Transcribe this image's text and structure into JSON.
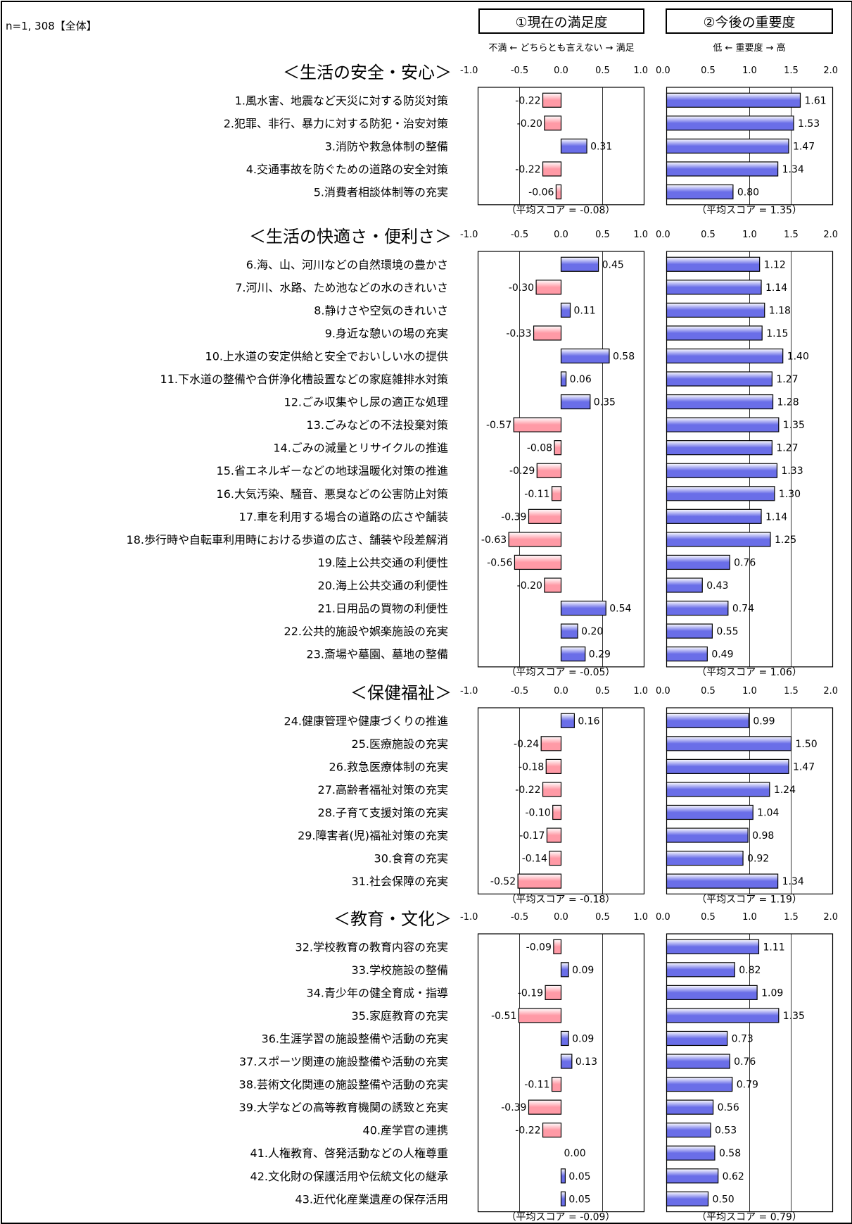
{
  "header": {
    "sample_label": "n=1, 308【全体】",
    "left_title": "①現在の満足度",
    "right_title": "②今後の重要度",
    "left_scale": "不満 ← どちらとも言えない → 満足",
    "right_scale": "低 ← 重要度 → 高"
  },
  "chart_data": {
    "type": "bar",
    "orientation": "horizontal",
    "panels": [
      {
        "name": "①現在の満足度",
        "xlim": [
          -1.0,
          1.0
        ],
        "ticks": [
          "-1.0",
          "-0.5",
          "0.0",
          "0.5",
          "1.0"
        ]
      },
      {
        "name": "②今後の重要度",
        "xlim": [
          0.0,
          2.0
        ],
        "ticks": [
          "0.0",
          "0.5",
          "1.0",
          "1.5",
          "2.0"
        ]
      }
    ],
    "colors": {
      "negative": "#ff9aa6",
      "positive_satisfaction": "#6a6ee8",
      "importance": "#6a6ee8"
    },
    "groups": [
      {
        "title": "＜生活の安全・安心＞",
        "avg_satisfaction": "（平均スコア = -0.08）",
        "avg_importance": "（平均スコア = 1.35）",
        "items": [
          {
            "label": "1.風水害、地震など天災に対する防災対策",
            "satisfaction": -0.22,
            "importance": 1.61
          },
          {
            "label": "2.犯罪、非行、暴力に対する防犯・治安対策",
            "satisfaction": -0.2,
            "importance": 1.53
          },
          {
            "label": "3.消防や救急体制の整備",
            "satisfaction": 0.31,
            "importance": 1.47
          },
          {
            "label": "4.交通事故を防ぐための道路の安全対策",
            "satisfaction": -0.22,
            "importance": 1.34
          },
          {
            "label": "5.消費者相談体制等の充実",
            "satisfaction": -0.06,
            "importance": 0.8
          }
        ]
      },
      {
        "title": "＜生活の快適さ・便利さ＞",
        "avg_satisfaction": "（平均スコア = -0.05）",
        "avg_importance": "（平均スコア = 1.06）",
        "items": [
          {
            "label": "6.海、山、河川などの自然環境の豊かさ",
            "satisfaction": 0.45,
            "importance": 1.12
          },
          {
            "label": "7.河川、水路、ため池などの水のきれいさ",
            "satisfaction": -0.3,
            "importance": 1.14
          },
          {
            "label": "8.静けさや空気のきれいさ",
            "satisfaction": 0.11,
            "importance": 1.18
          },
          {
            "label": "9.身近な憩いの場の充実",
            "satisfaction": -0.33,
            "importance": 1.15
          },
          {
            "label": "10.上水道の安定供給と安全でおいしい水の提供",
            "satisfaction": 0.58,
            "importance": 1.4
          },
          {
            "label": "11.下水道の整備や合併浄化槽設置などの家庭雑排水対策",
            "satisfaction": 0.06,
            "importance": 1.27
          },
          {
            "label": "12.ごみ収集やし尿の適正な処理",
            "satisfaction": 0.35,
            "importance": 1.28
          },
          {
            "label": "13.ごみなどの不法投棄対策",
            "satisfaction": -0.57,
            "importance": 1.35
          },
          {
            "label": "14.ごみの減量とリサイクルの推進",
            "satisfaction": -0.08,
            "importance": 1.27
          },
          {
            "label": "15.省エネルギーなどの地球温暖化対策の推進",
            "satisfaction": -0.29,
            "importance": 1.33
          },
          {
            "label": "16.大気汚染、騒音、悪臭などの公害防止対策",
            "satisfaction": -0.11,
            "importance": 1.3
          },
          {
            "label": "17.車を利用する場合の道路の広さや舗装",
            "satisfaction": -0.39,
            "importance": 1.14
          },
          {
            "label": "18.歩行時や自転車利用時における歩道の広さ、舗装や段差解消",
            "satisfaction": -0.63,
            "importance": 1.25
          },
          {
            "label": "19.陸上公共交通の利便性",
            "satisfaction": -0.56,
            "importance": 0.76
          },
          {
            "label": "20.海上公共交通の利便性",
            "satisfaction": -0.2,
            "importance": 0.43
          },
          {
            "label": "21.日用品の買物の利便性",
            "satisfaction": 0.54,
            "importance": 0.74
          },
          {
            "label": "22.公共的施設や娯楽施設の充実",
            "satisfaction": 0.2,
            "importance": 0.55
          },
          {
            "label": "23.斎場や墓園、墓地の整備",
            "satisfaction": 0.29,
            "importance": 0.49
          }
        ]
      },
      {
        "title": "＜保健福祉＞",
        "avg_satisfaction": "（平均スコア = -0.18）",
        "avg_importance": "（平均スコア = 1.19）",
        "items": [
          {
            "label": "24.健康管理や健康づくりの推進",
            "satisfaction": 0.16,
            "importance": 0.99
          },
          {
            "label": "25.医療施設の充実",
            "satisfaction": -0.24,
            "importance": 1.5
          },
          {
            "label": "26.救急医療体制の充実",
            "satisfaction": -0.18,
            "importance": 1.47
          },
          {
            "label": "27.高齢者福祉対策の充実",
            "satisfaction": -0.22,
            "importance": 1.24
          },
          {
            "label": "28.子育て支援対策の充実",
            "satisfaction": -0.1,
            "importance": 1.04
          },
          {
            "label": "29.障害者(児)福祉対策の充実",
            "satisfaction": -0.17,
            "importance": 0.98
          },
          {
            "label": "30.食育の充実",
            "satisfaction": -0.14,
            "importance": 0.92
          },
          {
            "label": "31.社会保障の充実",
            "satisfaction": -0.52,
            "importance": 1.34
          }
        ]
      },
      {
        "title": "＜教育・文化＞",
        "avg_satisfaction": "（平均スコア = -0.09）",
        "avg_importance": "（平均スコア = 0.79）",
        "items": [
          {
            "label": "32.学校教育の教育内容の充実",
            "satisfaction": -0.09,
            "importance": 1.11
          },
          {
            "label": "33.学校施設の整備",
            "satisfaction": 0.09,
            "importance": 0.82
          },
          {
            "label": "34.青少年の健全育成・指導",
            "satisfaction": -0.19,
            "importance": 1.09
          },
          {
            "label": "35.家庭教育の充実",
            "satisfaction": -0.51,
            "importance": 1.35
          },
          {
            "label": "36.生涯学習の施設整備や活動の充実",
            "satisfaction": 0.09,
            "importance": 0.73
          },
          {
            "label": "37.スポーツ関連の施設整備や活動の充実",
            "satisfaction": 0.13,
            "importance": 0.76
          },
          {
            "label": "38.芸術文化関連の施設整備や活動の充実",
            "satisfaction": -0.11,
            "importance": 0.79
          },
          {
            "label": "39.大学などの高等教育機関の誘致と充実",
            "satisfaction": -0.39,
            "importance": 0.56
          },
          {
            "label": "40.産学官の連携",
            "satisfaction": -0.22,
            "importance": 0.53
          },
          {
            "label": "41.人権教育、啓発活動などの人権尊重",
            "satisfaction": 0.0,
            "importance": 0.58
          },
          {
            "label": "42.文化財の保護活用や伝統文化の継承",
            "satisfaction": 0.05,
            "importance": 0.62
          },
          {
            "label": "43.近代化産業遺産の保存活用",
            "satisfaction": 0.05,
            "importance": 0.5
          }
        ]
      }
    ]
  }
}
